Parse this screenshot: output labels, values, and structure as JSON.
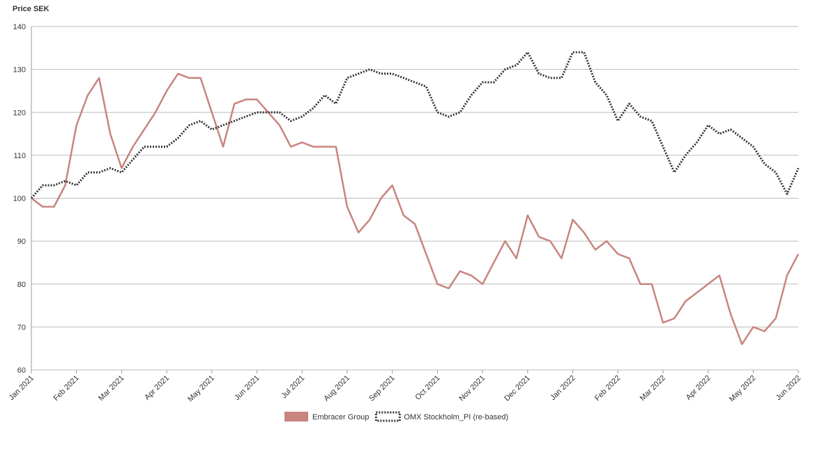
{
  "chart_data": {
    "type": "line",
    "y_axis_label": "Price SEK",
    "categories": [
      "Jan 2021",
      null,
      null,
      null,
      "Feb 2021",
      null,
      null,
      null,
      "Mar 2021",
      null,
      null,
      null,
      "Apr 2021",
      null,
      null,
      null,
      "May 2021",
      null,
      null,
      null,
      "Jun 2021",
      null,
      null,
      null,
      "Jul 2021",
      null,
      null,
      null,
      "Aug 2021",
      null,
      null,
      null,
      "Sep 2021",
      null,
      null,
      null,
      "Oct 2021",
      null,
      null,
      null,
      "Nov 2021",
      null,
      null,
      null,
      "Dec 2021",
      null,
      null,
      null,
      "Jan 2022",
      null,
      null,
      null,
      "Feb 2022",
      null,
      null,
      null,
      "Mar 2022",
      null,
      null,
      null,
      "Apr 2022",
      null,
      null,
      null,
      "May 2022",
      null,
      null,
      null,
      "Jun 2022"
    ],
    "series": [
      {
        "name": "Embracer Group",
        "color": "#c8847e",
        "dash": false,
        "values": [
          100,
          98,
          98,
          103,
          117,
          124,
          128,
          115,
          107,
          112,
          116,
          120,
          125,
          129,
          128,
          128,
          120,
          112,
          122,
          123,
          123,
          120,
          117,
          112,
          113,
          112,
          112,
          112,
          98,
          92,
          95,
          100,
          103,
          96,
          94,
          87,
          80,
          79,
          83,
          82,
          80,
          85,
          90,
          86,
          96,
          91,
          90,
          86,
          95,
          92,
          88,
          90,
          87,
          86,
          80,
          80,
          71,
          72,
          76,
          78,
          80,
          82,
          73,
          66,
          70,
          69,
          72,
          82,
          87
        ]
      },
      {
        "name": "OMX Stockholm_PI (re-based)",
        "color": "#333333",
        "dash": true,
        "values": [
          100,
          103,
          103,
          104,
          103,
          106,
          106,
          107,
          106,
          109,
          112,
          112,
          112,
          114,
          117,
          118,
          116,
          117,
          118,
          119,
          120,
          120,
          120,
          118,
          119,
          121,
          124,
          122,
          128,
          129,
          130,
          129,
          129,
          128,
          127,
          126,
          120,
          119,
          120,
          124,
          127,
          127,
          130,
          131,
          134,
          129,
          128,
          128,
          134,
          134,
          127,
          124,
          118,
          122,
          119,
          118,
          112,
          106,
          110,
          113,
          117,
          115,
          116,
          114,
          112,
          108,
          106,
          101,
          107
        ]
      }
    ],
    "ylim": [
      60,
      140
    ],
    "yticks": [
      60,
      70,
      80,
      90,
      100,
      110,
      120,
      130,
      140
    ],
    "grid": true,
    "legend": "bottom"
  }
}
